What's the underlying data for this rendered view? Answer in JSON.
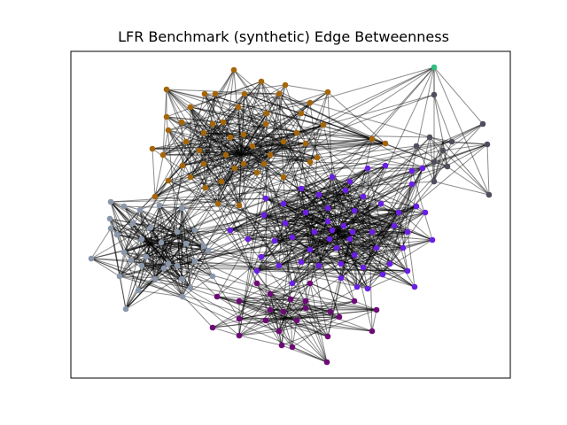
{
  "figure": {
    "title": "LFR Benchmark (synthetic) Edge Betweenness"
  },
  "communities": [
    {
      "name": "orange",
      "color": "#a5660a"
    },
    {
      "name": "violet",
      "color": "#6a1ee6"
    },
    {
      "name": "steel-gray",
      "color": "#8a97ab"
    },
    {
      "name": "purple",
      "color": "#6e0a78"
    },
    {
      "name": "dark-gray",
      "color": "#4e4e5e"
    },
    {
      "name": "green",
      "color": "#2fbf80"
    }
  ],
  "style": {
    "edge_color": "#000000",
    "frame_color": "#000000"
  }
}
